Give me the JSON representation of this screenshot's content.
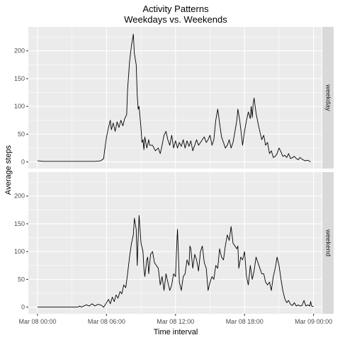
{
  "chart_data": {
    "type": "line",
    "title": "Activity Patterns",
    "subtitle": "Weekdays vs. Weekends",
    "xlabel": "Time interval",
    "ylabel": "Average steps",
    "x_ticks": [
      "Mar 08 00:00",
      "Mar 08 06:00",
      "Mar 08 12:00",
      "Mar 08 18:00",
      "Mar 09 00:00"
    ],
    "x_tick_hours": [
      0,
      6,
      12,
      18,
      24
    ],
    "y_ticks": [
      0,
      50,
      100,
      150,
      200
    ],
    "ylim": [
      -12,
      243
    ],
    "xlim_hours": [
      -0.8,
      24.7
    ],
    "grid": true,
    "panels": [
      {
        "label": "weekday",
        "points": [
          [
            0,
            2
          ],
          [
            0.5,
            1
          ],
          [
            1,
            1
          ],
          [
            2,
            1
          ],
          [
            3,
            1
          ],
          [
            4,
            1
          ],
          [
            5,
            1
          ],
          [
            5.5,
            2
          ],
          [
            5.75,
            6
          ],
          [
            5.83,
            20
          ],
          [
            6,
            45
          ],
          [
            6.17,
            62
          ],
          [
            6.33,
            75
          ],
          [
            6.42,
            58
          ],
          [
            6.58,
            70
          ],
          [
            6.75,
            55
          ],
          [
            6.92,
            72
          ],
          [
            7.08,
            62
          ],
          [
            7.25,
            75
          ],
          [
            7.42,
            65
          ],
          [
            7.58,
            78
          ],
          [
            7.75,
            85
          ],
          [
            7.83,
            130
          ],
          [
            8,
            180
          ],
          [
            8.17,
            210
          ],
          [
            8.33,
            230
          ],
          [
            8.42,
            195
          ],
          [
            8.58,
            175
          ],
          [
            8.67,
            120
          ],
          [
            8.75,
            95
          ],
          [
            8.83,
            100
          ],
          [
            9,
            60
          ],
          [
            9.08,
            35
          ],
          [
            9.17,
            40
          ],
          [
            9.25,
            22
          ],
          [
            9.33,
            45
          ],
          [
            9.5,
            25
          ],
          [
            9.67,
            40
          ],
          [
            9.75,
            30
          ],
          [
            10,
            30
          ],
          [
            10.25,
            20
          ],
          [
            10.5,
            25
          ],
          [
            10.67,
            15
          ],
          [
            10.83,
            30
          ],
          [
            11,
            48
          ],
          [
            11.17,
            55
          ],
          [
            11.33,
            40
          ],
          [
            11.5,
            30
          ],
          [
            11.67,
            48
          ],
          [
            11.83,
            25
          ],
          [
            12,
            38
          ],
          [
            12.17,
            25
          ],
          [
            12.33,
            35
          ],
          [
            12.5,
            28
          ],
          [
            12.67,
            40
          ],
          [
            12.83,
            25
          ],
          [
            13,
            38
          ],
          [
            13.17,
            28
          ],
          [
            13.33,
            38
          ],
          [
            13.5,
            20
          ],
          [
            13.67,
            30
          ],
          [
            13.83,
            40
          ],
          [
            14,
            30
          ],
          [
            14.17,
            35
          ],
          [
            14.33,
            40
          ],
          [
            14.5,
            45
          ],
          [
            14.67,
            35
          ],
          [
            14.83,
            40
          ],
          [
            15,
            48
          ],
          [
            15.17,
            30
          ],
          [
            15.33,
            40
          ],
          [
            15.5,
            75
          ],
          [
            15.67,
            95
          ],
          [
            15.83,
            70
          ],
          [
            16,
            45
          ],
          [
            16.17,
            35
          ],
          [
            16.33,
            25
          ],
          [
            16.5,
            30
          ],
          [
            16.67,
            40
          ],
          [
            16.83,
            25
          ],
          [
            17,
            35
          ],
          [
            17.17,
            55
          ],
          [
            17.33,
            75
          ],
          [
            17.42,
            95
          ],
          [
            17.58,
            75
          ],
          [
            17.75,
            45
          ],
          [
            17.83,
            30
          ],
          [
            18,
            55
          ],
          [
            18.17,
            75
          ],
          [
            18.33,
            90
          ],
          [
            18.5,
            78
          ],
          [
            18.58,
            100
          ],
          [
            18.67,
            80
          ],
          [
            18.75,
            105
          ],
          [
            18.83,
            115
          ],
          [
            19,
            88
          ],
          [
            19.17,
            70
          ],
          [
            19.33,
            55
          ],
          [
            19.5,
            40
          ],
          [
            19.67,
            48
          ],
          [
            19.83,
            30
          ],
          [
            20,
            35
          ],
          [
            20.17,
            15
          ],
          [
            20.33,
            20
          ],
          [
            20.5,
            8
          ],
          [
            20.67,
            10
          ],
          [
            20.83,
            15
          ],
          [
            21,
            25
          ],
          [
            21.17,
            18
          ],
          [
            21.33,
            10
          ],
          [
            21.5,
            12
          ],
          [
            21.67,
            8
          ],
          [
            21.83,
            15
          ],
          [
            22,
            6
          ],
          [
            22.17,
            8
          ],
          [
            22.33,
            10
          ],
          [
            22.5,
            6
          ],
          [
            22.67,
            4
          ],
          [
            22.83,
            8
          ],
          [
            23,
            5
          ],
          [
            23.25,
            2
          ],
          [
            23.5,
            3
          ],
          [
            23.75,
            0
          ]
        ]
      },
      {
        "label": "weekend",
        "points": [
          [
            0,
            0
          ],
          [
            1,
            0
          ],
          [
            2,
            0
          ],
          [
            3,
            0
          ],
          [
            3.5,
            0
          ],
          [
            3.67,
            2
          ],
          [
            3.83,
            0
          ],
          [
            4,
            2
          ],
          [
            4.25,
            4
          ],
          [
            4.5,
            2
          ],
          [
            4.75,
            6
          ],
          [
            5,
            2
          ],
          [
            5.25,
            5
          ],
          [
            5.5,
            4
          ],
          [
            5.75,
            0
          ],
          [
            6,
            8
          ],
          [
            6.17,
            14
          ],
          [
            6.33,
            6
          ],
          [
            6.5,
            18
          ],
          [
            6.67,
            10
          ],
          [
            6.83,
            22
          ],
          [
            7,
            16
          ],
          [
            7.17,
            28
          ],
          [
            7.33,
            24
          ],
          [
            7.5,
            40
          ],
          [
            7.67,
            35
          ],
          [
            7.83,
            60
          ],
          [
            8,
            90
          ],
          [
            8.17,
            115
          ],
          [
            8.33,
            130
          ],
          [
            8.42,
            160
          ],
          [
            8.58,
            140
          ],
          [
            8.67,
            75
          ],
          [
            8.75,
            125
          ],
          [
            8.83,
            165
          ],
          [
            9,
            115
          ],
          [
            9.17,
            100
          ],
          [
            9.25,
            70
          ],
          [
            9.33,
            55
          ],
          [
            9.5,
            85
          ],
          [
            9.58,
            90
          ],
          [
            9.67,
            60
          ],
          [
            9.83,
            95
          ],
          [
            10,
            100
          ],
          [
            10.17,
            80
          ],
          [
            10.33,
            75
          ],
          [
            10.5,
            70
          ],
          [
            10.67,
            40
          ],
          [
            10.83,
            55
          ],
          [
            11,
            30
          ],
          [
            11.17,
            60
          ],
          [
            11.33,
            45
          ],
          [
            11.5,
            30
          ],
          [
            11.67,
            40
          ],
          [
            11.83,
            60
          ],
          [
            12,
            55
          ],
          [
            12.08,
            100
          ],
          [
            12.17,
            140
          ],
          [
            12.25,
            95
          ],
          [
            12.33,
            45
          ],
          [
            12.5,
            30
          ],
          [
            12.67,
            55
          ],
          [
            12.83,
            60
          ],
          [
            13,
            85
          ],
          [
            13.17,
            75
          ],
          [
            13.25,
            110
          ],
          [
            13.33,
            105
          ],
          [
            13.5,
            70
          ],
          [
            13.67,
            95
          ],
          [
            13.83,
            85
          ],
          [
            14,
            65
          ],
          [
            14.17,
            100
          ],
          [
            14.33,
            110
          ],
          [
            14.5,
            80
          ],
          [
            14.67,
            70
          ],
          [
            14.83,
            30
          ],
          [
            15,
            45
          ],
          [
            15.17,
            55
          ],
          [
            15.33,
            50
          ],
          [
            15.5,
            75
          ],
          [
            15.67,
            70
          ],
          [
            15.83,
            105
          ],
          [
            16,
            90
          ],
          [
            16.17,
            85
          ],
          [
            16.33,
            110
          ],
          [
            16.5,
            130
          ],
          [
            16.67,
            120
          ],
          [
            16.83,
            145
          ],
          [
            17,
            115
          ],
          [
            17.17,
            110
          ],
          [
            17.33,
            105
          ],
          [
            17.42,
            110
          ],
          [
            17.5,
            70
          ],
          [
            17.67,
            90
          ],
          [
            17.83,
            85
          ],
          [
            18,
            100
          ],
          [
            18.17,
            55
          ],
          [
            18.33,
            40
          ],
          [
            18.5,
            75
          ],
          [
            18.67,
            50
          ],
          [
            18.83,
            65
          ],
          [
            19,
            90
          ],
          [
            19.17,
            80
          ],
          [
            19.33,
            70
          ],
          [
            19.5,
            60
          ],
          [
            19.67,
            60
          ],
          [
            19.83,
            45
          ],
          [
            20,
            40
          ],
          [
            20.17,
            45
          ],
          [
            20.33,
            30
          ],
          [
            20.5,
            55
          ],
          [
            20.67,
            70
          ],
          [
            20.83,
            90
          ],
          [
            21,
            75
          ],
          [
            21.17,
            50
          ],
          [
            21.33,
            30
          ],
          [
            21.5,
            15
          ],
          [
            21.67,
            8
          ],
          [
            21.83,
            12
          ],
          [
            22,
            5
          ],
          [
            22.17,
            3
          ],
          [
            22.33,
            8
          ],
          [
            22.5,
            2
          ],
          [
            22.67,
            4
          ],
          [
            22.83,
            2
          ],
          [
            23,
            3
          ],
          [
            23.17,
            12
          ],
          [
            23.33,
            2
          ],
          [
            23.5,
            4
          ],
          [
            23.67,
            2
          ],
          [
            23.75,
            10
          ],
          [
            23.83,
            2
          ],
          [
            24,
            1
          ]
        ]
      }
    ]
  }
}
